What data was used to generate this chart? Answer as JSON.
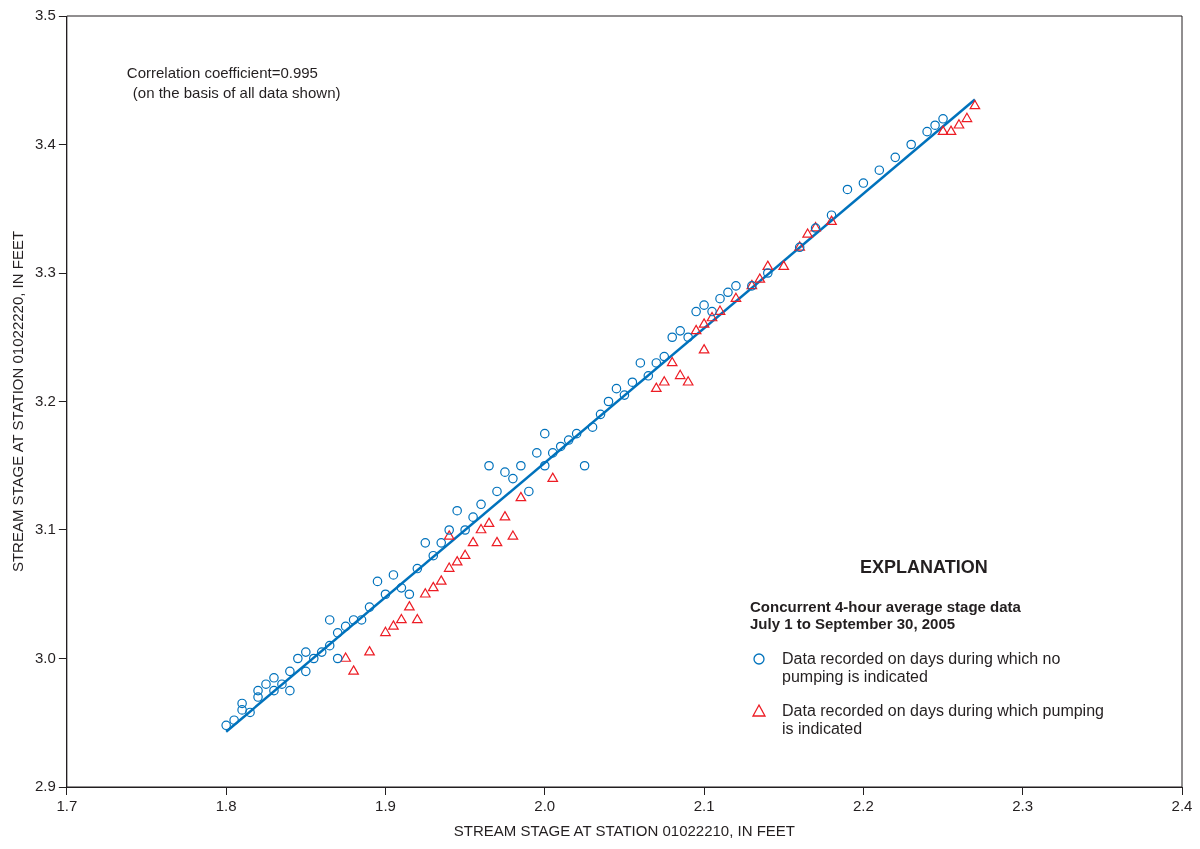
{
  "chart_data": {
    "type": "scatter",
    "xlabel": "STREAM STAGE AT STATION 01022210, IN FEET",
    "ylabel": "STREAM STAGE AT STATION 01022220, IN FEET",
    "xlim": [
      1.7,
      2.4
    ],
    "xticks": [
      1.7,
      1.8,
      1.9,
      {
        "value": 2.0,
        "label": "2.0"
      },
      2.1,
      2.2,
      2.3,
      2.4
    ],
    "ylim": [
      2.9,
      3.5
    ],
    "yticks": [
      2.9,
      {
        "value": 3.0,
        "label": "3.0"
      },
      3.1,
      3.2,
      3.3,
      3.4,
      3.5
    ],
    "grid": false,
    "legend": "bottom right",
    "legend_title": "EXPLANATION",
    "annotations": [
      "Correlation coefficient=0.995",
      "(on the basis of all data shown)",
      "Concurrent 4-hour average stage data July 1 to September 30, 2005"
    ],
    "series": [
      {
        "name": "Data recorded on days during which no pumping is indicated",
        "color": "#0072bc",
        "marker": "circle",
        "x": [
          1.8,
          1.805,
          1.81,
          1.81,
          1.815,
          1.82,
          1.82,
          1.825,
          1.83,
          1.83,
          1.835,
          1.84,
          1.84,
          1.845,
          1.85,
          1.85,
          1.855,
          1.86,
          1.865,
          1.865,
          1.87,
          1.87,
          1.875,
          1.88,
          1.885,
          1.89,
          1.895,
          1.9,
          1.905,
          1.91,
          1.915,
          1.92,
          1.925,
          1.93,
          1.935,
          1.94,
          1.945,
          1.95,
          1.955,
          1.96,
          1.965,
          1.97,
          1.975,
          1.98,
          1.985,
          1.99,
          1.995,
          2.0,
          2.0,
          2.005,
          2.01,
          2.015,
          2.02,
          2.025,
          2.03,
          2.035,
          2.04,
          2.045,
          2.05,
          2.055,
          2.06,
          2.065,
          2.07,
          2.075,
          2.08,
          2.085,
          2.09,
          2.095,
          2.1,
          2.105,
          2.11,
          2.115,
          2.12,
          2.13,
          2.14,
          2.16,
          2.17,
          2.18,
          2.19,
          2.2,
          2.21,
          2.22,
          2.23,
          2.24,
          2.245,
          2.25
        ],
        "values": [
          2.948,
          2.952,
          2.96,
          2.965,
          2.958,
          2.97,
          2.975,
          2.98,
          2.975,
          2.985,
          2.98,
          2.99,
          2.975,
          3.0,
          2.99,
          3.005,
          3.0,
          3.005,
          3.01,
          3.03,
          3.02,
          3.0,
          3.025,
          3.03,
          3.03,
          3.04,
          3.06,
          3.05,
          3.065,
          3.055,
          3.05,
          3.07,
          3.09,
          3.08,
          3.09,
          3.1,
          3.115,
          3.1,
          3.11,
          3.12,
          3.15,
          3.13,
          3.145,
          3.14,
          3.15,
          3.13,
          3.16,
          3.175,
          3.15,
          3.16,
          3.165,
          3.17,
          3.175,
          3.15,
          3.18,
          3.19,
          3.2,
          3.21,
          3.205,
          3.215,
          3.23,
          3.22,
          3.23,
          3.235,
          3.25,
          3.255,
          3.25,
          3.27,
          3.275,
          3.27,
          3.28,
          3.285,
          3.29,
          3.29,
          3.3,
          3.32,
          3.335,
          3.345,
          3.365,
          3.37,
          3.38,
          3.39,
          3.4,
          3.41,
          3.415,
          3.42
        ]
      },
      {
        "name": "Data recorded on days during which pumping is indicated",
        "color": "#ed1c24",
        "marker": "triangle",
        "x": [
          1.875,
          1.88,
          1.89,
          1.9,
          1.905,
          1.91,
          1.915,
          1.92,
          1.925,
          1.93,
          1.935,
          1.94,
          1.94,
          1.945,
          1.95,
          1.955,
          1.96,
          1.965,
          1.97,
          1.975,
          1.98,
          1.985,
          2.005,
          2.07,
          2.075,
          2.08,
          2.085,
          2.09,
          2.095,
          2.1,
          2.1,
          2.105,
          2.11,
          2.12,
          2.13,
          2.135,
          2.14,
          2.15,
          2.16,
          2.165,
          2.17,
          2.18,
          2.25,
          2.255,
          2.26,
          2.265,
          2.27
        ],
        "values": [
          3.0,
          2.99,
          3.005,
          3.02,
          3.025,
          3.03,
          3.04,
          3.03,
          3.05,
          3.055,
          3.06,
          3.07,
          3.095,
          3.075,
          3.08,
          3.09,
          3.1,
          3.105,
          3.09,
          3.11,
          3.095,
          3.125,
          3.14,
          3.21,
          3.215,
          3.23,
          3.22,
          3.215,
          3.255,
          3.24,
          3.26,
          3.265,
          3.27,
          3.28,
          3.29,
          3.295,
          3.305,
          3.305,
          3.32,
          3.33,
          3.335,
          3.34,
          3.41,
          3.41,
          3.415,
          3.42,
          3.43
        ]
      },
      {
        "type": "line",
        "color": "#0072bc",
        "marker": "none",
        "x": [
          1.8,
          2.27
        ],
        "values": [
          2.943,
          3.435
        ]
      }
    ]
  }
}
